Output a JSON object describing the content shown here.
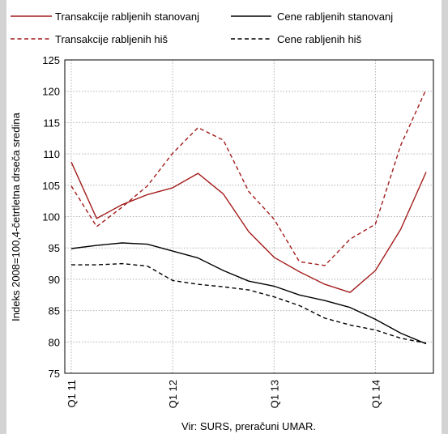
{
  "chart_data": {
    "type": "line",
    "title": "",
    "ylabel": "Indeks 2008=100,4-četrtletna drseča sredina",
    "xlabel": "",
    "ylim": [
      75,
      125
    ],
    "yticks": [
      75,
      80,
      85,
      90,
      95,
      100,
      105,
      110,
      115,
      120,
      125
    ],
    "grid": true,
    "legend_position": "top",
    "x_tick_labels": [
      "Q1 11",
      "Q1 12",
      "Q1 13",
      "Q1 14"
    ],
    "x_tick_indices": [
      0,
      4,
      8,
      12
    ],
    "x": [
      "Q1 11",
      "Q2 11",
      "Q3 11",
      "Q4 11",
      "Q1 12",
      "Q2 12",
      "Q3 12",
      "Q4 12",
      "Q1 13",
      "Q2 13",
      "Q3 13",
      "Q4 13",
      "Q1 14",
      "Q2 14",
      "Q3 14"
    ],
    "series": [
      {
        "name": "Transakcije rabljenih stanovanj",
        "color": "#a31c1c",
        "dash": "solid",
        "values": [
          108.7,
          99.7,
          101.9,
          103.5,
          104.6,
          106.9,
          103.6,
          97.6,
          93.5,
          91.2,
          89.2,
          87.9,
          91.4,
          98.0,
          107.1
        ]
      },
      {
        "name": "Cene rabljenih stanovanj",
        "color": "#000000",
        "dash": "solid",
        "values": [
          94.9,
          95.4,
          95.8,
          95.6,
          94.5,
          93.4,
          91.4,
          89.7,
          88.9,
          87.5,
          86.6,
          85.5,
          83.6,
          81.4,
          79.7
        ]
      },
      {
        "name": "Transakcije rabljenih hiš",
        "color": "#a31c1c",
        "dash": "dashed",
        "values": [
          104.9,
          98.4,
          101.5,
          104.9,
          110.1,
          114.2,
          112.2,
          104.0,
          99.6,
          92.8,
          92.2,
          96.4,
          98.8,
          111.4,
          120.3
        ]
      },
      {
        "name": "Cene rabljenih hiš",
        "color": "#000000",
        "dash": "dashed",
        "values": [
          92.3,
          92.3,
          92.5,
          92.1,
          89.8,
          89.2,
          88.8,
          88.3,
          87.2,
          85.8,
          83.8,
          82.7,
          81.9,
          80.6,
          79.8
        ]
      }
    ],
    "source_note": "Vir: SURS,  preračuni UMAR."
  }
}
